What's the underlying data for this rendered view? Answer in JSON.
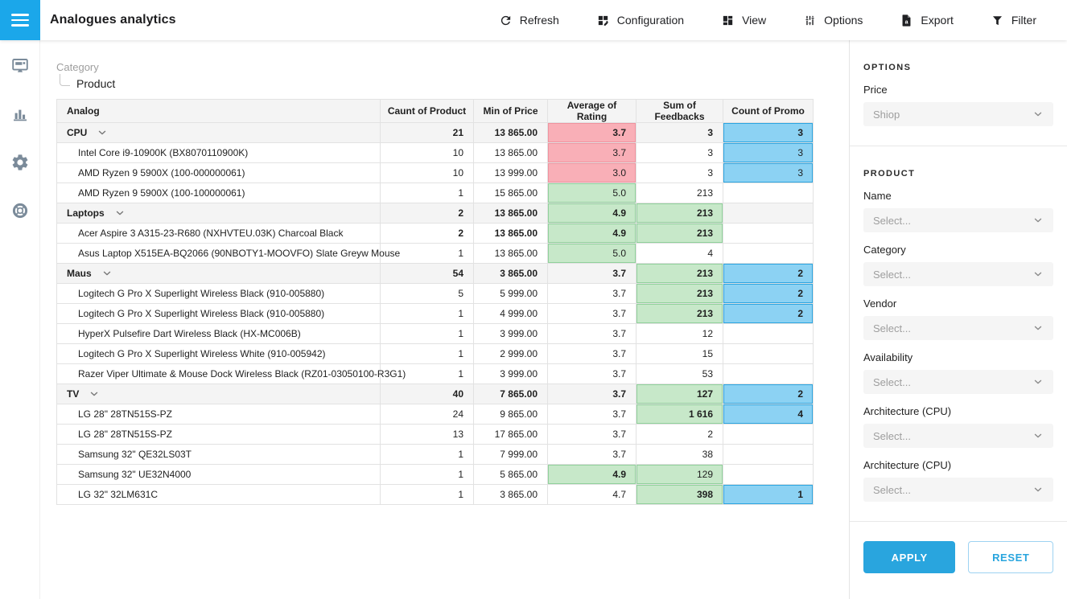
{
  "colors": {
    "accent_blue": "#1BA7EA",
    "apply_blue": "#29A5DE",
    "pink_bg": "#F9AFB7",
    "pink_border": "#F0939F",
    "green_bg": "#C7E8C9",
    "green_border": "#90D19B",
    "blue_bg": "#8CD2F3",
    "blue_border": "#2CA5E1"
  },
  "header": {
    "title": "Analogues analytics",
    "toolbar": [
      {
        "label": "Refresh",
        "icon": "refresh-icon"
      },
      {
        "label": "Configuration",
        "icon": "configuration-icon"
      },
      {
        "label": "View",
        "icon": "view-icon"
      },
      {
        "label": "Options",
        "icon": "options-icon"
      },
      {
        "label": "Export",
        "icon": "export-icon"
      },
      {
        "label": "Filter",
        "icon": "filter-icon"
      }
    ]
  },
  "sidebar": {
    "items": [
      {
        "id": "dashboard",
        "icon": "dashboard-icon"
      },
      {
        "id": "analytics",
        "icon": "bar-chart-icon"
      },
      {
        "id": "settings",
        "icon": "gear-icon"
      },
      {
        "id": "support",
        "icon": "lifebuoy-icon"
      }
    ]
  },
  "pivot": {
    "hierarchy": {
      "parent": "Category",
      "child": "Product"
    },
    "columns": [
      "Analog",
      "Caunt of Product",
      "Min of Price",
      "Average of Rating",
      "Sum of Feedbacks",
      "Count of Promo"
    ],
    "rows": [
      {
        "label": "CPU",
        "group": true,
        "cells": [
          {
            "v": "21",
            "b": true
          },
          {
            "v": "13 865.00",
            "b": true
          },
          {
            "v": "3.7",
            "b": true,
            "h": "pink"
          },
          {
            "v": "3",
            "b": true
          },
          {
            "v": "3",
            "b": true,
            "h": "blue"
          }
        ]
      },
      {
        "label": "Intel Core i9-10900K (BX8070110900K)",
        "cells": [
          {
            "v": "10"
          },
          {
            "v": "13 865.00"
          },
          {
            "v": "3.7",
            "h": "pink"
          },
          {
            "v": "3"
          },
          {
            "v": "3",
            "h": "blue"
          }
        ]
      },
      {
        "label": "AMD Ryzen 9 5900X (100-000000061)",
        "cells": [
          {
            "v": "10"
          },
          {
            "v": "13 999.00"
          },
          {
            "v": "3.0",
            "h": "pink"
          },
          {
            "v": "3"
          },
          {
            "v": "3",
            "h": "blue"
          }
        ]
      },
      {
        "label": "AMD Ryzen 9 5900X (100-100000061)",
        "cells": [
          {
            "v": "1"
          },
          {
            "v": "15 865.00"
          },
          {
            "v": "5.0",
            "h": "green"
          },
          {
            "v": "213"
          },
          {
            "v": ""
          }
        ]
      },
      {
        "label": "Laptops",
        "group": true,
        "cells": [
          {
            "v": "2",
            "b": true
          },
          {
            "v": "13 865.00",
            "b": true
          },
          {
            "v": "4.9",
            "b": true,
            "h": "green"
          },
          {
            "v": "213",
            "b": true,
            "h": "green"
          },
          {
            "v": ""
          }
        ]
      },
      {
        "label": "Acer Aspire 3 A315-23-R680 (NXHVTEU.03K) Charcoal Black",
        "cells": [
          {
            "v": "2",
            "b": true
          },
          {
            "v": "13 865.00",
            "b": true
          },
          {
            "v": "4.9",
            "b": true,
            "h": "green"
          },
          {
            "v": "213",
            "b": true,
            "h": "green"
          },
          {
            "v": ""
          }
        ]
      },
      {
        "label": "Asus Laptop X515EA-BQ2066 (90NBOTY1-MOOVFO) Slate Greyw Mouse",
        "cells": [
          {
            "v": "1"
          },
          {
            "v": "13 865.00"
          },
          {
            "v": "5.0",
            "h": "green"
          },
          {
            "v": "4"
          },
          {
            "v": ""
          }
        ]
      },
      {
        "label": "Maus",
        "group": true,
        "cells": [
          {
            "v": "54",
            "b": true
          },
          {
            "v": "3 865.00",
            "b": true
          },
          {
            "v": "3.7",
            "b": true
          },
          {
            "v": "213",
            "b": true,
            "h": "green"
          },
          {
            "v": "2",
            "b": true,
            "h": "blue"
          }
        ]
      },
      {
        "label": "Logitech G Pro X Superlight Wireless Black (910-005880)",
        "cells": [
          {
            "v": "5"
          },
          {
            "v": "5 999.00"
          },
          {
            "v": "3.7"
          },
          {
            "v": "213",
            "b": true,
            "h": "green"
          },
          {
            "v": "2",
            "b": true,
            "h": "blue"
          }
        ]
      },
      {
        "label": "Logitech G Pro X Superlight Wireless Black (910-005880)",
        "cells": [
          {
            "v": "1"
          },
          {
            "v": "4 999.00"
          },
          {
            "v": "3.7"
          },
          {
            "v": "213",
            "b": true,
            "h": "green"
          },
          {
            "v": "2",
            "b": true,
            "h": "blue"
          }
        ]
      },
      {
        "label": "HyperX Pulsefire Dart Wireless Black (HX-MC006B)",
        "cells": [
          {
            "v": "1"
          },
          {
            "v": "3 999.00"
          },
          {
            "v": "3.7"
          },
          {
            "v": "12"
          },
          {
            "v": ""
          }
        ]
      },
      {
        "label": "Logitech G Pro X Superlight Wireless White (910-005942)",
        "cells": [
          {
            "v": "1"
          },
          {
            "v": "2 999.00"
          },
          {
            "v": "3.7"
          },
          {
            "v": "15"
          },
          {
            "v": ""
          }
        ]
      },
      {
        "label": "Razer Viper Ultimate & Mouse Dock Wireless Black (RZ01-03050100-R3G1)",
        "cells": [
          {
            "v": "1"
          },
          {
            "v": "3 999.00"
          },
          {
            "v": "3.7"
          },
          {
            "v": "53"
          },
          {
            "v": ""
          }
        ]
      },
      {
        "label": "TV",
        "group": true,
        "cells": [
          {
            "v": "40",
            "b": true
          },
          {
            "v": "7 865.00",
            "b": true
          },
          {
            "v": "3.7",
            "b": true
          },
          {
            "v": "127",
            "b": true,
            "h": "green"
          },
          {
            "v": "2",
            "b": true,
            "h": "blue"
          }
        ]
      },
      {
        "label": "LG 28\" 28TN515S-PZ",
        "cells": [
          {
            "v": "24"
          },
          {
            "v": "9 865.00"
          },
          {
            "v": "3.7"
          },
          {
            "v": "1 616",
            "b": true,
            "h": "green"
          },
          {
            "v": "4",
            "b": true,
            "h": "blue"
          }
        ]
      },
      {
        "label": "LG 28\" 28TN515S-PZ",
        "cells": [
          {
            "v": "13"
          },
          {
            "v": "17 865.00"
          },
          {
            "v": "3.7"
          },
          {
            "v": "2"
          },
          {
            "v": ""
          }
        ]
      },
      {
        "label": "Samsung 32\" QE32LS03T",
        "cells": [
          {
            "v": "1"
          },
          {
            "v": "7 999.00"
          },
          {
            "v": "3.7"
          },
          {
            "v": "38"
          },
          {
            "v": ""
          }
        ]
      },
      {
        "label": "Samsung 32\" UE32N4000",
        "cells": [
          {
            "v": "1"
          },
          {
            "v": "5 865.00"
          },
          {
            "v": "4.9",
            "b": true,
            "h": "green"
          },
          {
            "v": "129",
            "h": "green"
          },
          {
            "v": ""
          }
        ]
      },
      {
        "label": "LG 32\" 32LM631C",
        "cells": [
          {
            "v": "1"
          },
          {
            "v": "3 865.00"
          },
          {
            "v": "4.7"
          },
          {
            "v": "398",
            "b": true,
            "h": "green"
          },
          {
            "v": "1",
            "b": true,
            "h": "blue"
          }
        ]
      }
    ]
  },
  "panel": {
    "options_title": "OPTIONS",
    "price": {
      "label": "Price",
      "value": "Shiop"
    },
    "product_title": "PRODUCT",
    "filters": [
      {
        "label": "Name",
        "value": "Select..."
      },
      {
        "label": "Category",
        "value": "Select..."
      },
      {
        "label": "Vendor",
        "value": "Select..."
      },
      {
        "label": "Availability",
        "value": "Select..."
      },
      {
        "label": "Architecture (CPU)",
        "value": "Select..."
      },
      {
        "label": "Architecture (CPU)",
        "value": "Select..."
      }
    ],
    "apply_label": "APPLY",
    "reset_label": "RESET"
  }
}
